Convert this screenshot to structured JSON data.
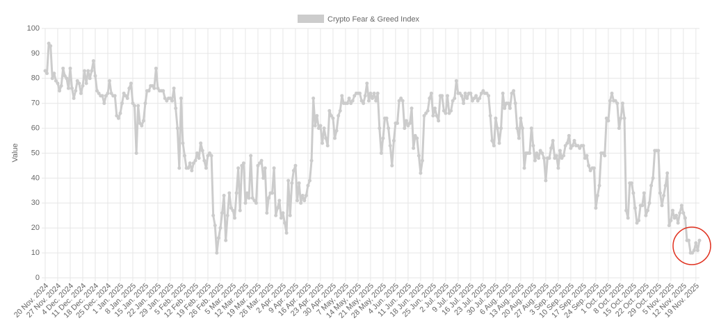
{
  "chart_data": {
    "type": "line",
    "y_label": "Value",
    "legend": "top",
    "grid": true,
    "ylim": [
      0,
      100
    ],
    "yticks": [
      0,
      10,
      20,
      30,
      40,
      50,
      60,
      70,
      80,
      90,
      100
    ],
    "categories": [
      "20 Nov. 2024",
      null,
      null,
      null,
      null,
      null,
      null,
      "27 Nov. 2024",
      null,
      null,
      null,
      null,
      null,
      null,
      "4 Dec. 2024",
      null,
      null,
      null,
      null,
      null,
      null,
      "11 Dec. 2024",
      null,
      null,
      null,
      null,
      null,
      null,
      "18 Dec. 2024",
      null,
      null,
      null,
      null,
      null,
      null,
      "25 Dec. 2024",
      null,
      null,
      null,
      null,
      null,
      null,
      "1 Jan. 2025",
      null,
      null,
      null,
      null,
      null,
      null,
      "8 Jan. 2025",
      null,
      null,
      null,
      null,
      null,
      null,
      "15 Jan. 2025",
      null,
      null,
      null,
      null,
      null,
      null,
      "22 Jan. 2025",
      null,
      null,
      null,
      null,
      null,
      null,
      "29 Jan. 2025",
      null,
      null,
      null,
      null,
      null,
      null,
      "5 Feb. 2025",
      null,
      null,
      null,
      null,
      null,
      null,
      "12 Feb. 2025",
      null,
      null,
      null,
      null,
      null,
      null,
      "19 Feb. 2025",
      null,
      null,
      null,
      null,
      null,
      null,
      "26 Feb. 2025",
      null,
      null,
      null,
      null,
      null,
      null,
      "5 Mar. 2025",
      null,
      null,
      null,
      null,
      null,
      null,
      "12 Mar. 2025",
      null,
      null,
      null,
      null,
      null,
      null,
      "19 Mar. 2025",
      null,
      null,
      null,
      null,
      null,
      null,
      "26 Mar. 2025",
      null,
      null,
      null,
      null,
      null,
      null,
      "2 Apr. 2025",
      null,
      null,
      null,
      null,
      null,
      null,
      "9 Apr. 2025",
      null,
      null,
      null,
      null,
      null,
      null,
      "16 Apr. 2025",
      null,
      null,
      null,
      null,
      null,
      null,
      "23 Apr. 2025",
      null,
      null,
      null,
      null,
      null,
      null,
      "30 Apr. 2025",
      null,
      null,
      null,
      null,
      null,
      null,
      "7 May, 2025",
      null,
      null,
      null,
      null,
      null,
      null,
      "14 May, 2025",
      null,
      null,
      null,
      null,
      null,
      null,
      "21 May, 2025",
      null,
      null,
      null,
      null,
      null,
      null,
      "28 May, 2025",
      null,
      null,
      null,
      null,
      null,
      null,
      "4 Jun. 2025",
      null,
      null,
      null,
      null,
      null,
      null,
      "11 Jun. 2025",
      null,
      null,
      null,
      null,
      null,
      null,
      "18 Jun. 2025",
      null,
      null,
      null,
      null,
      null,
      null,
      "25 Jun. 2025",
      null,
      null,
      null,
      null,
      null,
      null,
      "2 Jul. 2025",
      null,
      null,
      null,
      null,
      null,
      null,
      "9 Jul. 2025",
      null,
      null,
      null,
      null,
      null,
      null,
      "16 Jul. 2025",
      null,
      null,
      null,
      null,
      null,
      null,
      "23 Jul. 2025",
      null,
      null,
      null,
      null,
      null,
      null,
      "30 Jul. 2025",
      null,
      null,
      null,
      null,
      null,
      null,
      "6 Aug. 2025",
      null,
      null,
      null,
      null,
      null,
      null,
      "13 Aug. 2025",
      null,
      null,
      null,
      null,
      null,
      null,
      "20 Aug. 2025",
      null,
      null,
      null,
      null,
      null,
      null,
      "27 Aug. 2025",
      null,
      null,
      null,
      null,
      null,
      null,
      "3 Sep. 2025",
      null,
      null,
      null,
      null,
      null,
      null,
      "10 Sep. 2025",
      null,
      null,
      null,
      null,
      null,
      null,
      "17 Sep. 2025",
      null,
      null,
      null,
      null,
      null,
      null,
      "24 Sep. 2025",
      null,
      null,
      null,
      null,
      null,
      null,
      "1 Oct. 2025",
      null,
      null,
      null,
      null,
      null,
      null,
      "8 Oct. 2025",
      null,
      null,
      null,
      null,
      null,
      null,
      "15 Oct. 2025",
      null,
      null,
      null,
      null,
      null,
      null,
      "22 Oct. 2025",
      null,
      null,
      null,
      null,
      null,
      null,
      "29 Oct. 2025",
      null,
      null,
      null,
      null,
      null,
      null,
      "5 Nov. 2025",
      null,
      null,
      null,
      null,
      null,
      null,
      "12 Nov. 2025",
      null,
      null,
      null,
      null,
      null,
      null,
      "19 Nov. 2025",
      null,
      null
    ],
    "series": [
      {
        "name": "Crypto Fear & Greed Index",
        "color": "#cccccc",
        "values": [
          83,
          82,
          94,
          93,
          80,
          82,
          79,
          78,
          75,
          77,
          84,
          81,
          80,
          76,
          84,
          76,
          72,
          75,
          79,
          78,
          74,
          77,
          83,
          78,
          83,
          80,
          83,
          87,
          81,
          75,
          74,
          73,
          73,
          70,
          73,
          74,
          79,
          74,
          73,
          73,
          65,
          64,
          66,
          70,
          74,
          73,
          72,
          76,
          78,
          70,
          69,
          50,
          69,
          62,
          61,
          63,
          70,
          75,
          75,
          77,
          77,
          76,
          84,
          76,
          75,
          75,
          75,
          72,
          71,
          72,
          72,
          71,
          76,
          68,
          60,
          44,
          72,
          54,
          49,
          44,
          44,
          46,
          43,
          46,
          47,
          50,
          48,
          54,
          51,
          47,
          44,
          49,
          50,
          49,
          25,
          21,
          10,
          16,
          20,
          26,
          33,
          15,
          25,
          34,
          28,
          27,
          24,
          34,
          44,
          27,
          45,
          46,
          30,
          34,
          32,
          49,
          32,
          31,
          30,
          45,
          46,
          47,
          40,
          44,
          26,
          32,
          34,
          34,
          44,
          25,
          28,
          31,
          24,
          26,
          22,
          18,
          39,
          25,
          38,
          43,
          45,
          31,
          38,
          30,
          33,
          31,
          33,
          37,
          39,
          47,
          72,
          61,
          65,
          60,
          61,
          54,
          60,
          56,
          53,
          67,
          65,
          64,
          56,
          59,
          65,
          67,
          73,
          70,
          70,
          70,
          72,
          70,
          71,
          73,
          74,
          74,
          74,
          71,
          70,
          73,
          78,
          71,
          74,
          72,
          74,
          71,
          74,
          60,
          50,
          56,
          64,
          64,
          60,
          53,
          45,
          55,
          62,
          62,
          71,
          72,
          71,
          60,
          63,
          61,
          62,
          68,
          52,
          57,
          56,
          49,
          42,
          47,
          65,
          66,
          67,
          72,
          74,
          65,
          68,
          65,
          63,
          73,
          73,
          67,
          66,
          73,
          66,
          67,
          71,
          72,
          79,
          74,
          74,
          73,
          70,
          74,
          72,
          74,
          74,
          71,
          72,
          73,
          71,
          72,
          74,
          75,
          74,
          74,
          73,
          65,
          55,
          53,
          64,
          60,
          54,
          60,
          74,
          68,
          70,
          70,
          68,
          74,
          75,
          70,
          60,
          56,
          64,
          60,
          44,
          50,
          50,
          50,
          60,
          53,
          47,
          50,
          48,
          51,
          50,
          48,
          39,
          48,
          48,
          52,
          55,
          48,
          49,
          44,
          51,
          48,
          49,
          53,
          54,
          57,
          52,
          53,
          55,
          53,
          53,
          52,
          53,
          53,
          48,
          49,
          45,
          43,
          44,
          44,
          28,
          33,
          37,
          50,
          50,
          49,
          64,
          63,
          71,
          74,
          71,
          71,
          70,
          60,
          64,
          70,
          64,
          27,
          24,
          38,
          38,
          34,
          28,
          22,
          23,
          29,
          29,
          34,
          25,
          27,
          30,
          37,
          40,
          51,
          51,
          51,
          34,
          29,
          33,
          37,
          42,
          21,
          23,
          27,
          24,
          25,
          22,
          26,
          29,
          26,
          24,
          15,
          15,
          10,
          10,
          11,
          14,
          11,
          15
        ]
      }
    ]
  }
}
